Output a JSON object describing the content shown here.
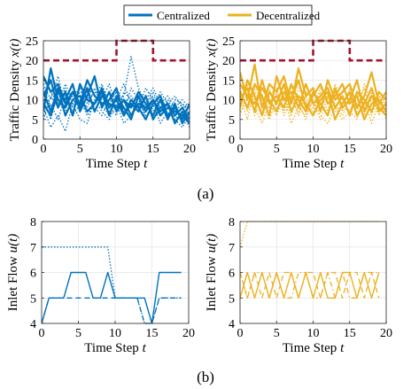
{
  "legend": {
    "items": [
      {
        "label": "Centralized",
        "color": "#0072BD"
      },
      {
        "label": "Decentralized",
        "color": "#EDB120"
      }
    ],
    "placement": "top-center"
  },
  "captions": {
    "a": "(a)",
    "b": "(b)"
  },
  "colors": {
    "central": "#0072BD",
    "decentral": "#EDB120",
    "limit": "#A2142F"
  },
  "chart_data": [
    {
      "id": "a-left",
      "type": "line",
      "ylabel_main": "Traffic Density ",
      "ylabel_var": "x(t)",
      "xlabel_main": "Time Step ",
      "xlabel_var": "t",
      "xlim": [
        0,
        20
      ],
      "ylim": [
        0,
        25
      ],
      "xticks": [
        0,
        5,
        10,
        15,
        20
      ],
      "yticks": [
        0,
        5,
        10,
        15,
        20,
        25
      ],
      "grid": true,
      "color": "#0072BD",
      "limit": {
        "x": [
          0,
          10,
          10,
          15,
          15,
          20
        ],
        "y": [
          20,
          20,
          25,
          25,
          20,
          20
        ],
        "color": "#A2142F",
        "style": "dashed"
      },
      "series": [
        {
          "style": "solid",
          "values": [
            16,
            12,
            14,
            9,
            12,
            8,
            13,
            7,
            11,
            9,
            8,
            10,
            6,
            9,
            8,
            10,
            7,
            9,
            6,
            8,
            5
          ]
        },
        {
          "style": "solid",
          "values": [
            12,
            7,
            13,
            6,
            10,
            11,
            7,
            9,
            13,
            8,
            10,
            6,
            9,
            7,
            11,
            5,
            8,
            9,
            4,
            7,
            4
          ]
        },
        {
          "style": "solid",
          "values": [
            11,
            15,
            8,
            12,
            6,
            14,
            10,
            9,
            12,
            6,
            11,
            8,
            5,
            11,
            7,
            10,
            6,
            8,
            7,
            6,
            4
          ]
        },
        {
          "style": "solid",
          "values": [
            7,
            18,
            10,
            8,
            12,
            9,
            15,
            11,
            9,
            10,
            13,
            6,
            10,
            8,
            5,
            9,
            11,
            6,
            8,
            5,
            9
          ]
        },
        {
          "style": "solid",
          "values": [
            9,
            6,
            12,
            10,
            14,
            7,
            11,
            16,
            8,
            12,
            7,
            10,
            8,
            12,
            9,
            6,
            10,
            5,
            9,
            4,
            7
          ]
        },
        {
          "style": "dotted",
          "values": [
            14,
            10,
            16,
            8,
            11,
            13,
            9,
            12,
            10,
            14,
            8,
            11,
            21,
            13,
            9,
            12,
            8,
            10,
            7,
            9,
            6
          ]
        },
        {
          "style": "dotted",
          "values": [
            6,
            9,
            5,
            11,
            8,
            10,
            6,
            9,
            12,
            7,
            10,
            14,
            9,
            11,
            8,
            7,
            10,
            5,
            8,
            6,
            8
          ]
        },
        {
          "style": "dotted",
          "values": [
            13,
            8,
            10,
            7,
            9,
            12,
            11,
            8,
            6,
            10,
            12,
            9,
            11,
            8,
            13,
            10,
            6,
            9,
            11,
            8,
            9
          ]
        },
        {
          "style": "dotted",
          "values": [
            5,
            11,
            8,
            13,
            6,
            9,
            12,
            7,
            11,
            8,
            6,
            12,
            10,
            7,
            9,
            11,
            8,
            6,
            10,
            9,
            7
          ]
        },
        {
          "style": "dotted",
          "values": [
            10,
            5,
            12,
            9,
            7,
            11,
            8,
            13,
            9,
            6,
            11,
            7,
            13,
            10,
            6,
            8,
            12,
            9,
            5,
            7,
            3
          ]
        },
        {
          "style": "dotted",
          "values": [
            8,
            3,
            6,
            2,
            9,
            5,
            4,
            10,
            7,
            5,
            9,
            4,
            6,
            11,
            5,
            9,
            4,
            7,
            5,
            3,
            6
          ]
        },
        {
          "style": "dotted",
          "values": [
            15,
            12,
            9,
            14,
            10,
            8,
            13,
            11,
            14,
            9,
            12,
            10,
            8,
            12,
            10,
            13,
            9,
            11,
            8,
            10,
            8
          ]
        }
      ]
    },
    {
      "id": "a-right",
      "type": "line",
      "ylabel_main": "Traffic Density ",
      "ylabel_var": "x(t)",
      "xlabel_main": "Time Step ",
      "xlabel_var": "t",
      "xlim": [
        0,
        20
      ],
      "ylim": [
        0,
        25
      ],
      "xticks": [
        0,
        5,
        10,
        15,
        20
      ],
      "yticks": [
        0,
        5,
        10,
        15,
        20,
        25
      ],
      "grid": true,
      "color": "#EDB120",
      "limit": {
        "x": [
          0,
          10,
          10,
          15,
          15,
          20
        ],
        "y": [
          20,
          20,
          25,
          25,
          20,
          20
        ],
        "color": "#A2142F",
        "style": "dashed"
      },
      "series": [
        {
          "style": "solid",
          "values": [
            17,
            10,
            19,
            8,
            14,
            12,
            16,
            9,
            18,
            11,
            13,
            7,
            15,
            10,
            12,
            14,
            8,
            11,
            17,
            9,
            12
          ]
        },
        {
          "style": "solid",
          "values": [
            10,
            13,
            7,
            15,
            9,
            11,
            8,
            14,
            10,
            7,
            12,
            9,
            6,
            13,
            8,
            10,
            15,
            7,
            11,
            8,
            6
          ]
        },
        {
          "style": "solid",
          "values": [
            12,
            8,
            14,
            11,
            6,
            16,
            10,
            12,
            8,
            14,
            9,
            11,
            13,
            8,
            11,
            6,
            12,
            10,
            7,
            12,
            10
          ]
        },
        {
          "style": "solid",
          "values": [
            8,
            15,
            11,
            6,
            12,
            9,
            14,
            7,
            11,
            9,
            6,
            10,
            12,
            5,
            9,
            12,
            6,
            9,
            13,
            7,
            9
          ]
        },
        {
          "style": "solid",
          "values": [
            14,
            11,
            9,
            13,
            10,
            7,
            12,
            10,
            15,
            8,
            11,
            14,
            9,
            11,
            14,
            9,
            11,
            5,
            9,
            10,
            7
          ]
        },
        {
          "style": "dotted",
          "values": [
            6,
            12,
            10,
            7,
            11,
            13,
            6,
            10,
            7,
            12,
            9,
            5,
            11,
            9,
            6,
            10,
            8,
            13,
            6,
            11,
            8
          ]
        },
        {
          "style": "dotted",
          "values": [
            13,
            7,
            12,
            9,
            5,
            10,
            12,
            6,
            13,
            10,
            7,
            12,
            7,
            14,
            10,
            7,
            12,
            8,
            11,
            6,
            10
          ]
        },
        {
          "style": "dotted",
          "values": [
            9,
            14,
            6,
            11,
            13,
            8,
            10,
            13,
            9,
            5,
            12,
            8,
            11,
            7,
            12,
            11,
            7,
            14,
            9,
            12,
            5
          ]
        },
        {
          "style": "dotted",
          "values": [
            11,
            5,
            13,
            10,
            8,
            12,
            7,
            11,
            6,
            11,
            8,
            13,
            10,
            12,
            7,
            13,
            9,
            6,
            12,
            8,
            11
          ]
        },
        {
          "style": "dotted",
          "values": [
            7,
            10,
            8,
            4,
            9,
            6,
            11,
            4,
            8,
            6,
            10,
            6,
            4,
            8,
            5,
            7,
            5,
            10,
            4,
            9,
            6
          ]
        }
      ]
    },
    {
      "id": "b-left",
      "type": "line",
      "ylabel_main": "Inlet Flow ",
      "ylabel_var": "u(t)",
      "xlabel_main": "Time Step ",
      "xlabel_var": "t",
      "xlim": [
        0,
        20
      ],
      "ylim": [
        4,
        8
      ],
      "xticks": [
        0,
        5,
        10,
        15,
        20
      ],
      "yticks": [
        4,
        5,
        6,
        7,
        8
      ],
      "grid": true,
      "color": "#0072BD",
      "series": [
        {
          "style": "solid",
          "x": [
            0,
            1,
            2,
            3,
            4,
            5,
            6,
            7,
            8,
            9,
            10,
            11,
            12,
            13,
            14,
            15,
            16,
            17,
            18,
            19
          ],
          "values": [
            4,
            5,
            5,
            5,
            6,
            6,
            6,
            5,
            5,
            6,
            5,
            5,
            5,
            5,
            5,
            4,
            6,
            6,
            6,
            6
          ]
        },
        {
          "style": "dashed",
          "x": [
            0,
            1,
            2,
            3,
            4,
            5,
            6,
            7,
            8,
            9,
            10,
            11,
            12,
            13,
            14,
            15,
            16,
            17,
            18,
            19
          ],
          "values": [
            4,
            5,
            5,
            5,
            5,
            5,
            5,
            5,
            5,
            5,
            5,
            5,
            5,
            5,
            4,
            4,
            5,
            5,
            5,
            5
          ]
        },
        {
          "style": "dotted",
          "x": [
            0,
            1,
            2,
            3,
            4,
            5,
            6,
            7,
            8,
            9,
            10,
            11,
            12,
            13,
            14,
            15,
            16,
            17,
            18,
            19
          ],
          "values": [
            7,
            7,
            7,
            7,
            7,
            7,
            7,
            7,
            7,
            7,
            5,
            5,
            5,
            5,
            4,
            4,
            5,
            5,
            5,
            5
          ]
        }
      ]
    },
    {
      "id": "b-right",
      "type": "line",
      "ylabel_main": "Inlet Flow ",
      "ylabel_var": "u(t)",
      "xlabel_main": "Time Step ",
      "xlabel_var": "t",
      "xlim": [
        0,
        20
      ],
      "ylim": [
        4,
        8
      ],
      "xticks": [
        0,
        5,
        10,
        15,
        20
      ],
      "yticks": [
        4,
        5,
        6,
        7,
        8
      ],
      "grid": true,
      "color": "#EDB120",
      "series": [
        {
          "style": "solid",
          "x": [
            0,
            1,
            2,
            3,
            4,
            5,
            6,
            7,
            8,
            9,
            10,
            11,
            12,
            13,
            14,
            15,
            16,
            17,
            18,
            19
          ],
          "values": [
            5,
            6,
            5,
            6,
            5,
            6,
            5,
            6,
            5,
            6,
            5,
            6,
            5,
            5,
            6,
            6,
            5,
            6,
            5,
            6
          ]
        },
        {
          "style": "dashed",
          "x": [
            0,
            1,
            2,
            3,
            4,
            5,
            6,
            7,
            8,
            9,
            10,
            11,
            12,
            13,
            14,
            15,
            16,
            17,
            18,
            19
          ],
          "values": [
            6,
            5,
            6,
            5,
            6,
            5,
            6,
            6,
            5,
            6,
            6,
            5,
            6,
            6,
            5,
            6,
            6,
            5,
            6,
            5
          ]
        },
        {
          "style": "dotted",
          "x": [
            0,
            1,
            2,
            3,
            4,
            5,
            6,
            7,
            8,
            9,
            10,
            11,
            12,
            13,
            14,
            15,
            16,
            17,
            18,
            19
          ],
          "values": [
            7,
            8,
            8,
            8,
            8,
            8,
            8,
            8,
            8,
            8,
            8,
            8,
            8,
            8,
            8,
            8,
            8,
            8,
            8,
            8
          ]
        },
        {
          "style": "dashdot",
          "x": [
            0,
            1,
            2,
            3,
            4,
            5,
            6,
            7,
            8,
            9,
            10,
            11,
            12,
            13,
            14,
            15,
            16,
            17,
            18,
            19
          ],
          "values": [
            6,
            5,
            6,
            6,
            5,
            6,
            5,
            5,
            6,
            6,
            5,
            5,
            6,
            5,
            6,
            5,
            5,
            6,
            6,
            6
          ]
        }
      ]
    }
  ]
}
